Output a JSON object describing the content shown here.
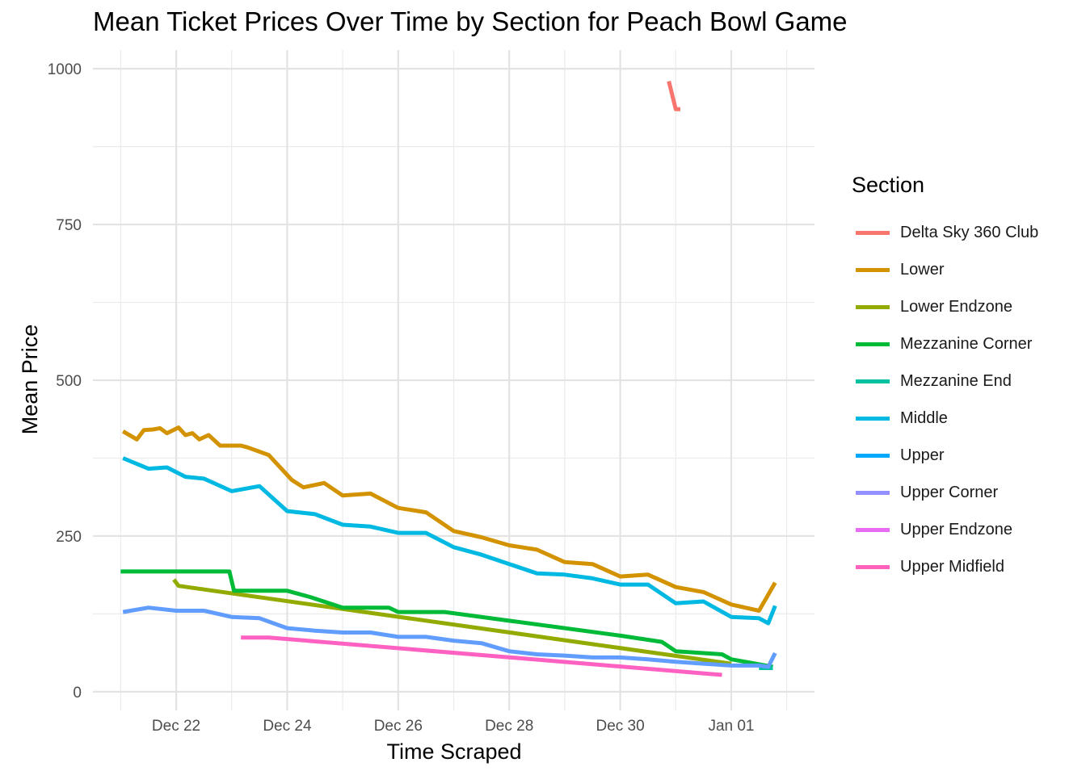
{
  "chart_data": {
    "type": "line",
    "title": "Mean Ticket Prices Over Time by Section for Peach Bowl Game",
    "xlabel": "Time Scraped",
    "ylabel": "Mean Price",
    "xlim": [
      "2022-12-20 12:00",
      "2023-01-02 12:00"
    ],
    "ylim": [
      -30,
      1030
    ],
    "x_ticks": [
      "Dec 22",
      "Dec 24",
      "Dec 26",
      "Dec 28",
      "Dec 30",
      "Jan 01"
    ],
    "x_tick_dates": [
      "2022-12-22",
      "2022-12-24",
      "2022-12-26",
      "2022-12-28",
      "2022-12-30",
      "2023-01-01"
    ],
    "y_ticks": [
      0,
      250,
      500,
      750,
      1000
    ],
    "grid": true,
    "legend_title": "Section",
    "legend_position": "right",
    "series": [
      {
        "name": "Delta Sky 360 Club",
        "color": "#F8766D",
        "x": [
          "2022-12-30 21:00",
          "2022-12-31 00:00",
          "2022-12-31 02:00"
        ],
        "values": [
          980,
          935,
          935
        ]
      },
      {
        "name": "Lower",
        "color": "#D39200",
        "x": [
          "2022-12-21 01:00",
          "2022-12-21 07:00",
          "2022-12-21 10:00",
          "2022-12-21 14:00",
          "2022-12-21 17:00",
          "2022-12-21 20:00",
          "2022-12-22 01:00",
          "2022-12-22 04:00",
          "2022-12-22 07:00",
          "2022-12-22 10:00",
          "2022-12-22 14:00",
          "2022-12-22 19:00",
          "2022-12-23 04:00",
          "2022-12-23 07:00",
          "2022-12-23 16:00",
          "2022-12-24 02:00",
          "2022-12-24 07:00",
          "2022-12-24 16:00",
          "2022-12-25 00:00",
          "2022-12-25 12:00",
          "2022-12-26 00:00",
          "2022-12-26 12:00",
          "2022-12-27 00:00",
          "2022-12-27 12:00",
          "2022-12-28 00:00",
          "2022-12-28 12:00",
          "2022-12-29 00:00",
          "2022-12-29 12:00",
          "2022-12-30 00:00",
          "2022-12-30 12:00",
          "2022-12-31 00:00",
          "2022-12-31 12:00",
          "2023-01-01 00:00",
          "2023-01-01 12:00",
          "2023-01-01 19:00"
        ],
        "values": [
          418,
          405,
          420,
          421,
          423,
          415,
          424,
          412,
          415,
          405,
          412,
          395,
          395,
          392,
          380,
          340,
          328,
          335,
          315,
          318,
          295,
          288,
          258,
          248,
          235,
          228,
          208,
          205,
          185,
          188,
          168,
          160,
          140,
          130,
          175
        ]
      },
      {
        "name": "Lower Endzone",
        "color": "#93AA00",
        "x": [
          "2022-12-21 23:00",
          "2022-12-22 01:00",
          "2023-01-01 00:00"
        ],
        "values": [
          180,
          170,
          45
        ]
      },
      {
        "name": "Mezzanine Corner",
        "color": "#00BA38",
        "x": [
          "2022-12-21 00:00",
          "2022-12-22 01:00",
          "2022-12-22 23:00",
          "2022-12-23 01:00",
          "2022-12-24 00:00",
          "2022-12-24 10:00",
          "2022-12-25 00:00",
          "2022-12-25 20:00",
          "2022-12-26 00:00",
          "2022-12-26 20:00",
          "2022-12-30 00:00",
          "2022-12-30 18:00",
          "2022-12-31 00:00",
          "2022-12-31 20:00",
          "2023-01-01 00:00",
          "2023-01-01 18:00"
        ],
        "values": [
          193,
          193,
          193,
          162,
          162,
          152,
          135,
          135,
          128,
          128,
          90,
          80,
          65,
          60,
          52,
          40
        ]
      },
      {
        "name": "Mezzanine End",
        "color": "#00C19F",
        "x": [
          "2023-01-01 12:00",
          "2023-01-01 18:00"
        ],
        "values": [
          38,
          38
        ]
      },
      {
        "name": "Middle",
        "color": "#00B9E3",
        "x": [
          "2022-12-21 01:00",
          "2022-12-21 12:00",
          "2022-12-21 20:00",
          "2022-12-22 04:00",
          "2022-12-22 12:00",
          "2022-12-23 00:00",
          "2022-12-23 12:00",
          "2022-12-24 00:00",
          "2022-12-24 12:00",
          "2022-12-25 00:00",
          "2022-12-25 12:00",
          "2022-12-26 00:00",
          "2022-12-26 12:00",
          "2022-12-27 00:00",
          "2022-12-27 12:00",
          "2022-12-28 00:00",
          "2022-12-28 12:00",
          "2022-12-29 00:00",
          "2022-12-29 12:00",
          "2022-12-30 00:00",
          "2022-12-30 12:00",
          "2022-12-31 00:00",
          "2022-12-31 12:00",
          "2023-01-01 00:00",
          "2023-01-01 12:00",
          "2023-01-01 16:00",
          "2023-01-01 19:00"
        ],
        "values": [
          375,
          358,
          360,
          345,
          342,
          322,
          330,
          290,
          285,
          268,
          265,
          255,
          255,
          232,
          220,
          205,
          190,
          188,
          182,
          172,
          172,
          142,
          145,
          120,
          118,
          110,
          138
        ]
      },
      {
        "name": "Upper",
        "color": "#619CFF",
        "x": [
          "2022-12-21 01:00",
          "2022-12-21 12:00",
          "2022-12-22 00:00",
          "2022-12-22 12:00",
          "2022-12-23 00:00",
          "2022-12-23 12:00",
          "2022-12-24 00:00",
          "2022-12-24 12:00",
          "2022-12-25 00:00",
          "2022-12-25 12:00",
          "2022-12-26 00:00",
          "2022-12-26 12:00",
          "2022-12-27 00:00",
          "2022-12-27 12:00",
          "2022-12-28 00:00",
          "2022-12-28 12:00",
          "2022-12-29 00:00",
          "2022-12-29 12:00",
          "2022-12-30 00:00",
          "2022-12-30 12:00",
          "2022-12-31 00:00",
          "2022-12-31 12:00",
          "2023-01-01 00:00",
          "2023-01-01 12:00",
          "2023-01-01 16:00",
          "2023-01-01 19:00"
        ],
        "values": [
          128,
          135,
          130,
          130,
          120,
          118,
          102,
          98,
          95,
          95,
          88,
          88,
          82,
          78,
          65,
          60,
          58,
          55,
          55,
          52,
          48,
          45,
          42,
          42,
          40,
          62
        ]
      },
      {
        "name": "Upper Corner",
        "color": "#DB72FB",
        "x": [],
        "values": []
      },
      {
        "name": "Upper Endzone",
        "color": "#FF61C3",
        "x": [],
        "values": []
      },
      {
        "name": "Upper Midfield",
        "color": "#FF61C3",
        "x": [
          "2022-12-23 04:00",
          "2022-12-23 16:00",
          "2022-12-31 20:00"
        ],
        "values": [
          87,
          87,
          27
        ]
      }
    ]
  },
  "legend": {
    "items": [
      {
        "label": "Delta Sky 360 Club",
        "color": "#F8766D"
      },
      {
        "label": "Lower",
        "color": "#D39200"
      },
      {
        "label": "Lower Endzone",
        "color": "#93AA00"
      },
      {
        "label": "Mezzanine Corner",
        "color": "#00BA38"
      },
      {
        "label": "Mezzanine End",
        "color": "#00C19F"
      },
      {
        "label": "Middle",
        "color": "#00B9E3"
      },
      {
        "label": "Upper",
        "color": "#00A9FF"
      },
      {
        "label": "Upper Corner",
        "color": "#9590FF"
      },
      {
        "label": "Upper Endzone",
        "color": "#E76BF3"
      },
      {
        "label": "Upper Midfield",
        "color": "#FF62BC"
      }
    ]
  }
}
